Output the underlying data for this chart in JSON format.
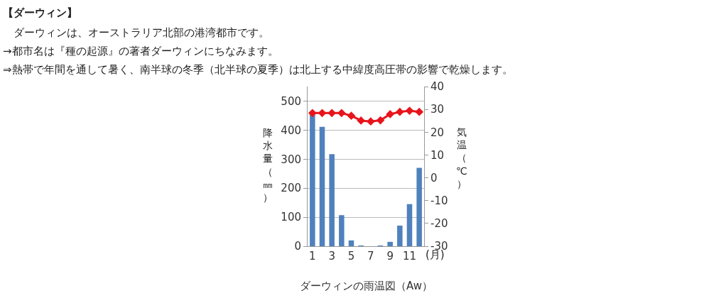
{
  "chart_data": {
    "type": "bar",
    "title": "【ダーウィン】",
    "annotations": [
      "　ダーウィンは、オーストラリア北部の港湾都市です。",
      "→都市名は『種の起源』の著者ダーウィンにちなみます。",
      "⇒熱帯で年間を通して暑く、南半球の冬季（北半球の夏季）は北上する中緯度高圧帯の影響で乾燥します。",
      "ダーウィンの雨温図（Aw）"
    ],
    "xlabel": "(月)",
    "ylabel": "降水量（㎜）",
    "y2label": "気温（℃）",
    "categories": [
      "1",
      null,
      "3",
      null,
      "5",
      null,
      "7",
      null,
      "9",
      null,
      "11",
      null
    ],
    "series": [
      {
        "color": "#4f81bd",
        "values": [
          455,
          411,
          317,
          107,
          20,
          1,
          0,
          1,
          15,
          71,
          145,
          270
        ]
      },
      {
        "type": "line",
        "axis": "y2",
        "color": "#e8141b",
        "marker": "diamond",
        "values": [
          28.4,
          28.4,
          28.4,
          28.4,
          27.2,
          25.1,
          24.7,
          25.2,
          27.9,
          28.9,
          29.4,
          28.9
        ]
      }
    ],
    "ylim": [
      0,
      550
    ],
    "yticks": [
      0,
      100,
      200,
      300,
      400,
      500
    ],
    "y2lim": [
      -30,
      40
    ],
    "y2ticks": [
      -30,
      -20,
      -10,
      0,
      10,
      20,
      30,
      40
    ],
    "grid": "y",
    "legend": false
  }
}
